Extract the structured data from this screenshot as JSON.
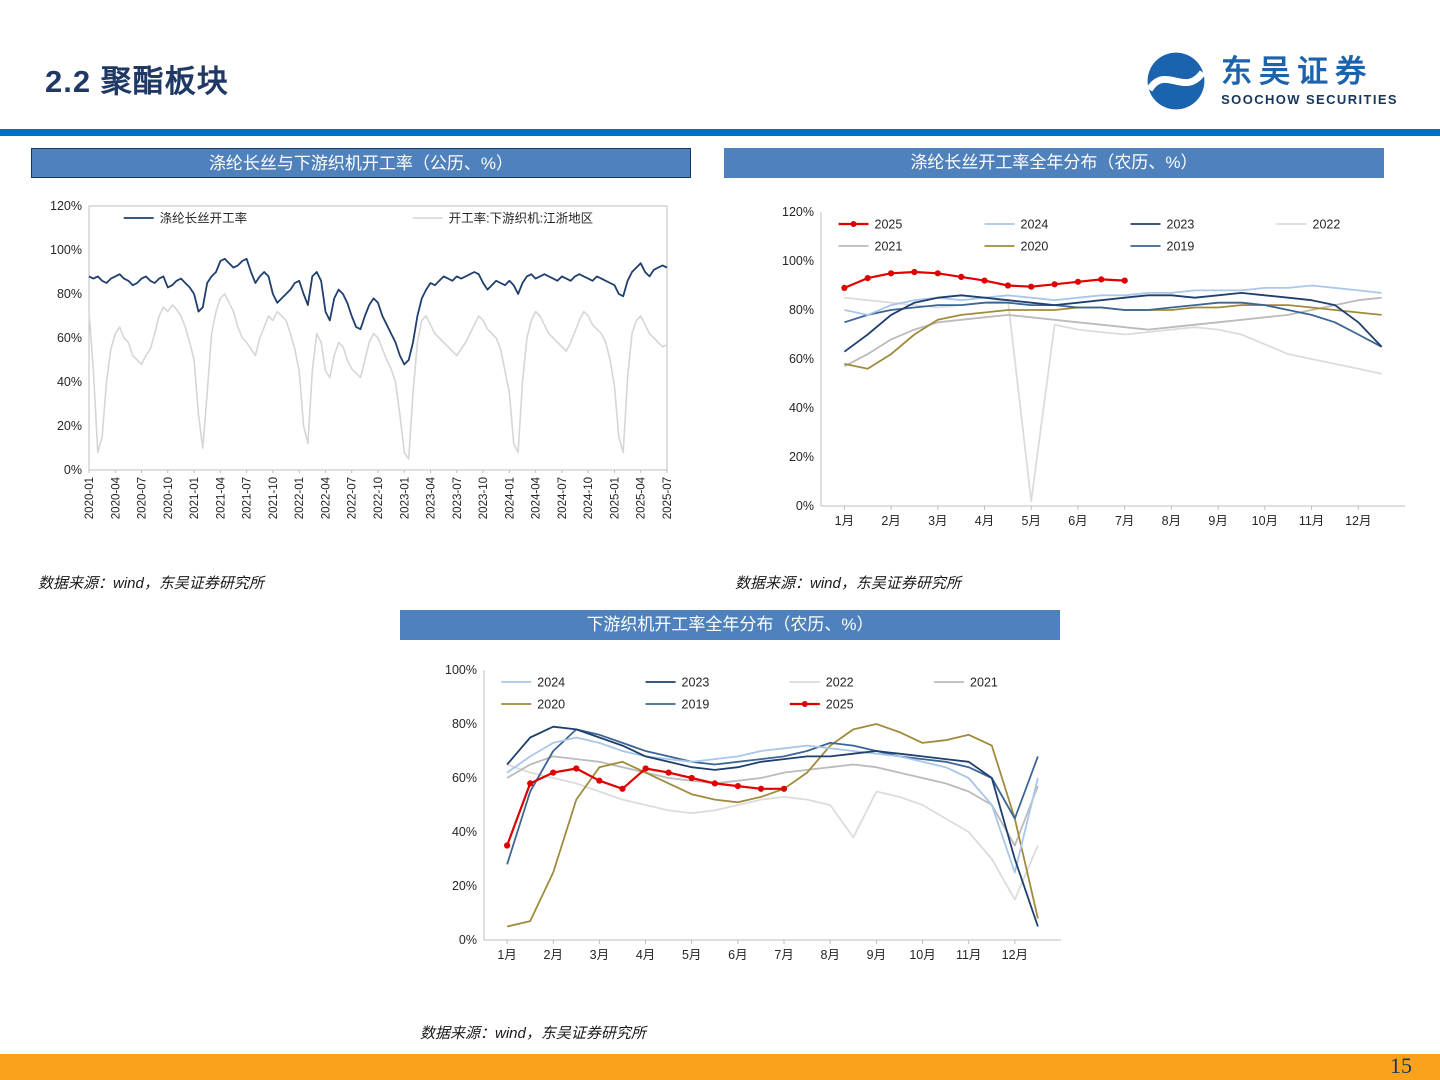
{
  "page": {
    "title": "2.2 聚酯板块",
    "page_number": "15",
    "logo": {
      "cn": "东吴证券",
      "en": "SOOCHOW SECURITIES"
    }
  },
  "sources": {
    "text": "数据来源：wind，东吴证券研究所"
  },
  "panels": [
    {
      "title": "涤纶长丝与下游织机开工率（公历、%）"
    },
    {
      "title": "涤纶长丝开工率全年分布（农历、%）"
    },
    {
      "title": "下游织机开工率全年分布（农历、%）"
    }
  ],
  "colors": {
    "header_bar": "#4F81BD",
    "divider": "#0070C0",
    "footer_bar": "#FAA21B",
    "title_text": "#1F3864",
    "logo_blue": "#1B63AC",
    "series_2025": "#E00000",
    "series_2024": "#A9C7E8",
    "series_2023": "#1F3F6E",
    "series_2022": "#DCDCDC",
    "series_2021": "#BBBBBB",
    "series_2020": "#A08B3C",
    "series_2019": "#3C6595"
  },
  "chart_data": [
    {
      "type": "line",
      "title": "涤纶长丝与下游织机开工率（公历、%）",
      "frame": "box",
      "margins": {
        "l": 58,
        "t": 14,
        "r": 14,
        "b": 90
      },
      "ylim": [
        0,
        120
      ],
      "yticks": [
        0,
        20,
        40,
        60,
        80,
        100,
        120
      ],
      "x_tick_every": 6,
      "x_tick_labels": [
        "2020-01",
        "2020-04",
        "2020-07",
        "2020-10",
        "2021-01",
        "2021-04",
        "2021-07",
        "2021-10",
        "2022-01",
        "2022-04",
        "2022-07",
        "2022-10",
        "2023-01",
        "2023-04",
        "2023-07",
        "2023-10",
        "2024-01",
        "2024-04",
        "2024-07",
        "2024-10",
        "2025-01",
        "2025-04",
        "2025-07"
      ],
      "legend_cols": 2,
      "legend_rows": [
        [
          "涤纶长丝开工率",
          "开工率:下游织机:江浙地区"
        ]
      ],
      "draw_order": [
        "开工率:下游织机:江浙地区",
        "涤纶长丝开工率"
      ],
      "series": [
        {
          "name": "涤纶长丝开工率",
          "color": "#1F3F6E",
          "width": 1.8,
          "values": [
            88,
            87,
            88,
            86,
            85,
            87,
            88,
            89,
            87,
            86,
            84,
            85,
            87,
            88,
            86,
            85,
            87,
            88,
            83,
            84,
            86,
            87,
            85,
            83,
            80,
            72,
            74,
            85,
            88,
            90,
            95,
            96,
            94,
            92,
            93,
            95,
            96,
            90,
            85,
            88,
            90,
            88,
            80,
            76,
            78,
            80,
            82,
            85,
            86,
            80,
            75,
            88,
            90,
            86,
            72,
            68,
            78,
            82,
            80,
            76,
            70,
            65,
            64,
            70,
            75,
            78,
            76,
            70,
            66,
            62,
            58,
            52,
            48,
            50,
            58,
            70,
            78,
            82,
            85,
            84,
            86,
            88,
            87,
            86,
            88,
            87,
            88,
            89,
            90,
            89,
            85,
            82,
            84,
            86,
            85,
            84,
            86,
            84,
            80,
            85,
            88,
            89,
            87,
            88,
            89,
            88,
            87,
            86,
            88,
            87,
            86,
            88,
            89,
            88,
            87,
            86,
            88,
            87,
            86,
            85,
            84,
            80,
            79,
            86,
            90,
            92,
            94,
            90,
            88,
            91,
            92,
            93,
            92
          ]
        },
        {
          "name": "开工率:下游织机:江浙地区",
          "color": "#D6D6D6",
          "width": 1.6,
          "values": [
            72,
            45,
            8,
            15,
            40,
            55,
            62,
            65,
            60,
            58,
            52,
            50,
            48,
            52,
            55,
            62,
            70,
            74,
            72,
            75,
            73,
            70,
            65,
            58,
            50,
            25,
            10,
            35,
            62,
            72,
            78,
            80,
            76,
            72,
            65,
            60,
            58,
            55,
            52,
            60,
            65,
            70,
            68,
            72,
            70,
            68,
            62,
            55,
            45,
            20,
            12,
            45,
            62,
            58,
            45,
            42,
            52,
            58,
            56,
            50,
            46,
            44,
            42,
            50,
            58,
            62,
            60,
            55,
            50,
            46,
            40,
            25,
            8,
            5,
            35,
            58,
            68,
            70,
            66,
            62,
            60,
            58,
            56,
            54,
            52,
            55,
            58,
            62,
            66,
            70,
            68,
            64,
            62,
            60,
            55,
            45,
            35,
            12,
            8,
            40,
            60,
            68,
            72,
            70,
            66,
            62,
            60,
            58,
            56,
            54,
            58,
            63,
            68,
            72,
            70,
            66,
            64,
            62,
            58,
            50,
            38,
            15,
            8,
            42,
            62,
            68,
            70,
            66,
            62,
            60,
            58,
            56,
            57
          ]
        }
      ]
    },
    {
      "type": "line",
      "title": "涤纶长丝开工率全年分布（农历、%）",
      "frame": "axes",
      "margins": {
        "l": 64,
        "t": 14,
        "r": 12,
        "b": 44
      },
      "ylim": [
        0,
        120
      ],
      "yticks": [
        0,
        20,
        40,
        60,
        80,
        100,
        120
      ],
      "x": [
        1,
        1.5,
        2,
        2.5,
        3,
        3.5,
        4,
        4.5,
        5,
        5.5,
        6,
        6.5,
        7,
        7.5,
        8,
        8.5,
        9,
        9.5,
        10,
        10.5,
        11,
        11.5,
        12,
        12.5
      ],
      "xlim": [
        0.5,
        13
      ],
      "x_ticks": [
        1,
        2,
        3,
        4,
        5,
        6,
        7,
        8,
        9,
        10,
        11,
        12
      ],
      "x_tick_labels": [
        "1月",
        "2月",
        "3月",
        "4月",
        "5月",
        "6月",
        "7月",
        "8月",
        "9月",
        "10月",
        "11月",
        "12月"
      ],
      "legend_cols": 4,
      "legend_rows": [
        [
          "2025",
          "2024",
          "2023",
          "2022"
        ],
        [
          "2021",
          "2020",
          "2019"
        ]
      ],
      "draw_order": [
        "2022",
        "2021",
        "2020",
        "2019",
        "2024",
        "2023",
        "2025"
      ],
      "series": [
        {
          "name": "2025",
          "color": "#E00000",
          "width": 2.2,
          "marker": true,
          "values": [
            89,
            93,
            95,
            95.5,
            95,
            93.5,
            92,
            90,
            89.5,
            90.5,
            91.5,
            92.5,
            92
          ]
        },
        {
          "name": "2024",
          "color": "#A9C7E8",
          "width": 1.8,
          "values": [
            80,
            78,
            82,
            84,
            85,
            84,
            85,
            86,
            85,
            84,
            85,
            86,
            86,
            87,
            87,
            88,
            88,
            88,
            89,
            89,
            90,
            89,
            88,
            87
          ]
        },
        {
          "name": "2023",
          "color": "#1F3F6E",
          "width": 1.8,
          "values": [
            63,
            70,
            78,
            83,
            85,
            86,
            85,
            84,
            83,
            82,
            83,
            84,
            85,
            86,
            86,
            85,
            86,
            87,
            86,
            85,
            84,
            82,
            75,
            65
          ]
        },
        {
          "name": "2022",
          "color": "#DCDCDC",
          "width": 1.8,
          "values": [
            85,
            84,
            83,
            82,
            81,
            82,
            83,
            84,
            2,
            74,
            72,
            71,
            70,
            71,
            72,
            73,
            72,
            70,
            66,
            62,
            60,
            58,
            56,
            54
          ]
        },
        {
          "name": "2021",
          "color": "#BBBBBB",
          "width": 1.8,
          "values": [
            57,
            62,
            68,
            72,
            75,
            76,
            77,
            78,
            77,
            76,
            75,
            74,
            73,
            72,
            73,
            74,
            75,
            76,
            77,
            78,
            80,
            82,
            84,
            85
          ]
        },
        {
          "name": "2020",
          "color": "#A08B3C",
          "width": 1.8,
          "values": [
            58,
            56,
            62,
            70,
            76,
            78,
            79,
            80,
            80,
            80,
            81,
            81,
            80,
            80,
            80,
            81,
            81,
            82,
            82,
            82,
            81,
            80,
            79,
            78
          ]
        },
        {
          "name": "2019",
          "color": "#3C6595",
          "width": 1.8,
          "values": [
            75,
            78,
            80,
            81,
            82,
            82,
            83,
            83,
            82,
            82,
            81,
            81,
            80,
            80,
            81,
            82,
            83,
            83,
            82,
            80,
            78,
            75,
            70,
            65
          ]
        }
      ]
    },
    {
      "type": "line",
      "title": "下游织机开工率全年分布（农历、%）",
      "frame": "axes",
      "margins": {
        "l": 56,
        "t": 12,
        "r": 12,
        "b": 40
      },
      "ylim": [
        0,
        100
      ],
      "yticks": [
        0,
        20,
        40,
        60,
        80,
        100
      ],
      "x": [
        1,
        1.5,
        2,
        2.5,
        3,
        3.5,
        4,
        4.5,
        5,
        5.5,
        6,
        6.5,
        7,
        7.5,
        8,
        8.5,
        9,
        9.5,
        10,
        10.5,
        11,
        11.5,
        12,
        12.5
      ],
      "xlim": [
        0.5,
        13
      ],
      "x_ticks": [
        1,
        2,
        3,
        4,
        5,
        6,
        7,
        8,
        9,
        10,
        11,
        12
      ],
      "x_tick_labels": [
        "1月",
        "2月",
        "3月",
        "4月",
        "5月",
        "6月",
        "7月",
        "8月",
        "9月",
        "10月",
        "11月",
        "12月"
      ],
      "legend_cols": 4,
      "legend_rows": [
        [
          "2024",
          "2023",
          "2022",
          "2021"
        ],
        [
          "2020",
          "2019",
          "2025"
        ]
      ],
      "draw_order": [
        "2022",
        "2021",
        "2020",
        "2019",
        "2024",
        "2023",
        "2025"
      ],
      "series": [
        {
          "name": "2025",
          "color": "#E00000",
          "width": 2.2,
          "marker": true,
          "values": [
            35,
            58,
            62,
            63.5,
            59,
            56,
            63.5,
            62,
            60,
            58,
            57,
            56,
            56
          ]
        },
        {
          "name": "2024",
          "color": "#A9C7E8",
          "width": 1.8,
          "values": [
            62,
            68,
            73,
            75,
            73,
            70,
            68,
            67,
            66,
            67,
            68,
            70,
            71,
            72,
            71,
            70,
            69,
            68,
            66,
            64,
            60,
            50,
            25,
            60
          ]
        },
        {
          "name": "2023",
          "color": "#1F3F6E",
          "width": 1.8,
          "values": [
            65,
            75,
            79,
            78,
            75,
            72,
            68,
            66,
            64,
            63,
            64,
            66,
            67,
            68,
            68,
            69,
            70,
            69,
            68,
            67,
            66,
            60,
            30,
            5
          ]
        },
        {
          "name": "2022",
          "color": "#DCDCDC",
          "width": 1.8,
          "values": [
            65,
            62,
            60,
            58,
            55,
            52,
            50,
            48,
            47,
            48,
            50,
            52,
            53,
            52,
            50,
            38,
            55,
            53,
            50,
            45,
            40,
            30,
            15,
            35
          ]
        },
        {
          "name": "2021",
          "color": "#BBBBBB",
          "width": 1.8,
          "values": [
            60,
            65,
            68,
            67,
            66,
            64,
            62,
            60,
            59,
            58,
            59,
            60,
            62,
            63,
            64,
            65,
            64,
            62,
            60,
            58,
            55,
            50,
            35,
            57
          ]
        },
        {
          "name": "2020",
          "color": "#A08B3C",
          "width": 1.8,
          "values": [
            5,
            7,
            25,
            52,
            64,
            66,
            62,
            58,
            54,
            52,
            51,
            53,
            56,
            62,
            72,
            78,
            80,
            77,
            73,
            74,
            76,
            72,
            45,
            8
          ]
        },
        {
          "name": "2019",
          "color": "#3C6595",
          "width": 1.8,
          "values": [
            28,
            55,
            70,
            78,
            76,
            73,
            70,
            68,
            66,
            65,
            66,
            67,
            68,
            70,
            73,
            72,
            70,
            68,
            67,
            66,
            64,
            60,
            45,
            68
          ]
        }
      ]
    }
  ]
}
